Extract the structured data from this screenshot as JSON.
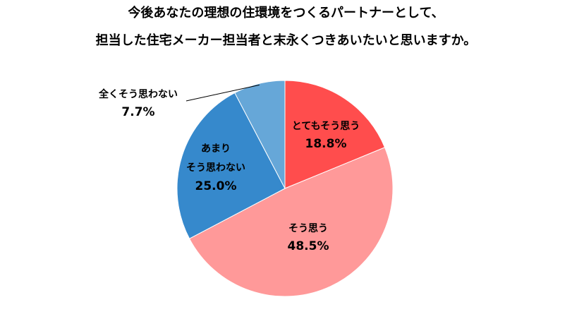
{
  "chart_data": {
    "type": "pie",
    "title_lines": [
      "今後あなたの理想の住環境をつくるパートナーとして、",
      "担当した住宅メーカー担当者と末永くつきあいたいと思いますか。"
    ],
    "slices": [
      {
        "label": "とてもそう思う",
        "value": 18.8,
        "value_label": "18.8%",
        "color": "#ff4d4d"
      },
      {
        "label": "そう思う",
        "value": 48.5,
        "value_label": "48.5%",
        "color": "#ff9999"
      },
      {
        "label": "あまり\nそう思わない",
        "value": 25.0,
        "value_label": "25.0%",
        "color": "#3689cc"
      },
      {
        "label": "全くそう思わない",
        "value": 7.7,
        "value_label": "7.7%",
        "color": "#66a7d8"
      }
    ],
    "start": "top",
    "direction": "clockwise",
    "legend": "none"
  }
}
